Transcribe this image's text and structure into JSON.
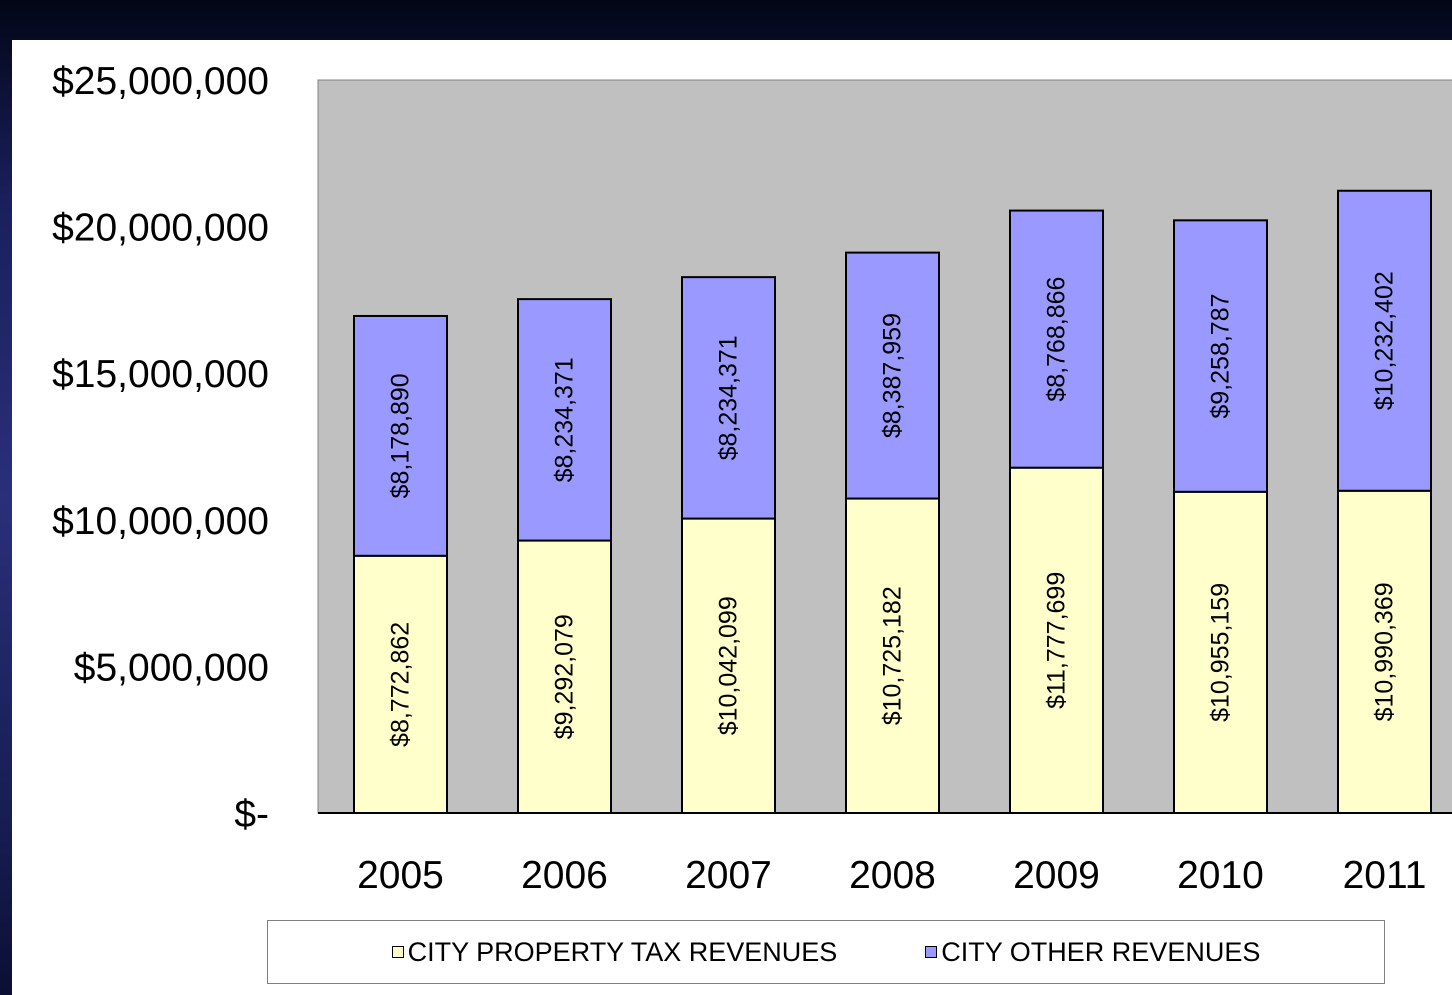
{
  "chart_data": {
    "type": "bar",
    "stacked": true,
    "categories": [
      "2005",
      "2006",
      "2007",
      "2008",
      "2009",
      "2010",
      "2011"
    ],
    "series": [
      {
        "name": "CITY PROPERTY TAX REVENUES",
        "color": "#FFFFCC",
        "values": [
          8772862,
          9292079,
          10042099,
          10725182,
          11777699,
          10955159,
          10990369
        ],
        "labels": [
          "$8,772,862",
          "$9,292,079",
          "$10,042,099",
          "$10,725,182",
          "$11,777,699",
          "$10,955,159",
          "$10,990,369"
        ]
      },
      {
        "name": "CITY OTHER REVENUES",
        "color": "#9999FF",
        "values": [
          8178890,
          8234371,
          8234371,
          8387959,
          8768866,
          9258787,
          10232402
        ],
        "labels": [
          "$8,178,890",
          "$8,234,371",
          "$8,234,371",
          "$8,387,959",
          "$8,768,866",
          "$9,258,787",
          "$10,232,402"
        ]
      }
    ],
    "ylim": [
      0,
      25000000
    ],
    "yticks": [
      0,
      5000000,
      10000000,
      15000000,
      20000000,
      25000000
    ],
    "ytick_labels": [
      "$-",
      "$5,000,000",
      "$10,000,000",
      "$15,000,000",
      "$20,000,000",
      "$25,000,000"
    ],
    "plot_background": "#C0C0C0",
    "legend_position": "bottom",
    "grid": false
  }
}
